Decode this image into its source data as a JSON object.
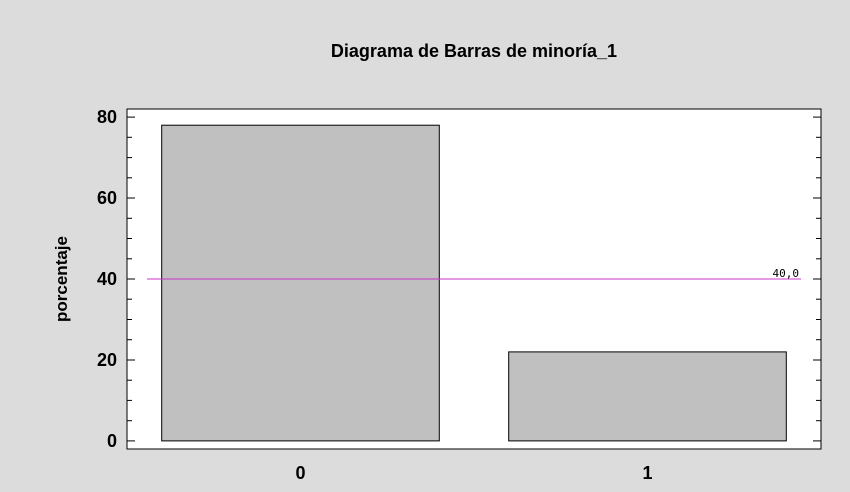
{
  "chart_data": {
    "type": "bar",
    "title": "Diagrama de Barras de minoría_1",
    "xlabel": "",
    "ylabel": "porcentaje",
    "categories": [
      "0",
      "1"
    ],
    "values": [
      78,
      22
    ],
    "ylim": [
      -2,
      82
    ],
    "yticks": [
      0,
      20,
      40,
      60,
      80
    ],
    "grid": false,
    "reference_line": {
      "value": 40,
      "label": "40,0",
      "color": "#cc33cc"
    },
    "colors": {
      "bar_fill": "#c0c0c0",
      "bar_stroke": "#000000",
      "plot_background": "#ffffff",
      "figure_background": "#dcdcdc"
    }
  }
}
